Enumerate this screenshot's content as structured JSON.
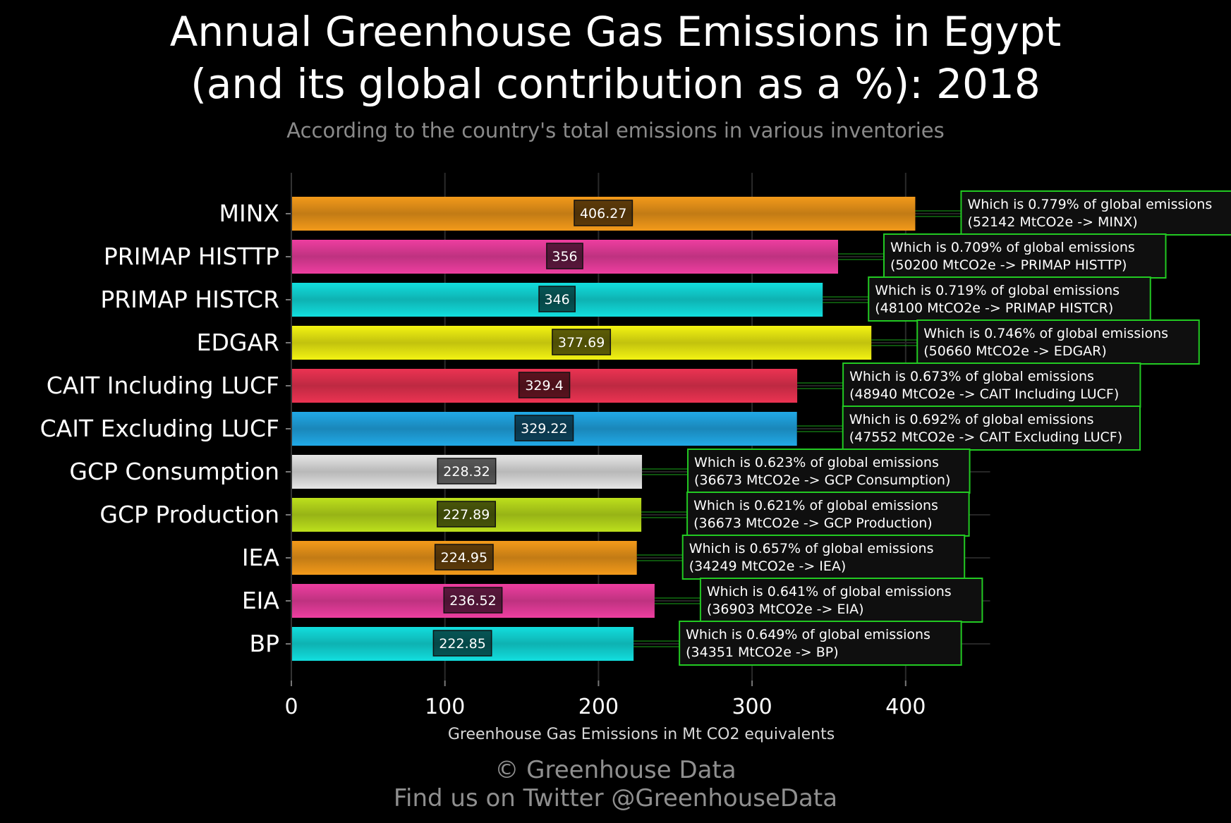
{
  "chart_data": {
    "type": "bar",
    "orientation": "horizontal",
    "title_lines": [
      "Annual Greenhouse Gas Emissions in Egypt",
      "(and its global contribution as a %): 2018"
    ],
    "subtitle": "According to the country's total emissions in various inventories",
    "xlabel": "Greenhouse Gas Emissions in Mt CO2 equivalents",
    "ylabel": "",
    "xlim": [
      0,
      455
    ],
    "xticks": [
      0,
      100,
      200,
      300,
      400
    ],
    "grid": true,
    "categories": [
      "MINX",
      "PRIMAP HISTTP",
      "PRIMAP HISTCR",
      "EDGAR",
      "CAIT Including LUCF",
      "CAIT Excluding LUCF",
      "GCP Consumption",
      "GCP Production",
      "IEA",
      "EIA",
      "BP"
    ],
    "values": [
      406.27,
      356,
      346,
      377.69,
      329.4,
      329.22,
      228.32,
      227.89,
      224.95,
      236.52,
      222.85
    ],
    "value_labels": [
      "406.27",
      "356",
      "346",
      "377.69",
      "329.4",
      "329.22",
      "228.32",
      "227.89",
      "224.95",
      "236.52",
      "222.85"
    ],
    "colors": [
      "#f39a1a",
      "#ee3ea0",
      "#12dede",
      "#f3f312",
      "#ec3352",
      "#21a9e7",
      "#e6e6e6",
      "#bde01c",
      "#f39a1a",
      "#ee3ea0",
      "#12dede"
    ],
    "annotations": [
      {
        "line1": "Which is 0.779% of global emissions",
        "line2": "(52142 MtCO2e -> MINX)",
        "share_pct": 0.779
      },
      {
        "line1": "Which is 0.709% of global emissions",
        "line2": "(50200 MtCO2e -> PRIMAP HISTTP)",
        "share_pct": 0.709
      },
      {
        "line1": "Which is 0.719% of global emissions",
        "line2": "(48100 MtCO2e -> PRIMAP HISTCR)",
        "share_pct": 0.719
      },
      {
        "line1": "Which is 0.746% of global emissions",
        "line2": "(50660 MtCO2e -> EDGAR)",
        "share_pct": 0.746
      },
      {
        "line1": "Which is 0.673% of global emissions",
        "line2": "(48940 MtCO2e -> CAIT Including LUCF)",
        "share_pct": 0.673
      },
      {
        "line1": "Which is 0.692% of global emissions",
        "line2": "(47552 MtCO2e -> CAIT Excluding LUCF)",
        "share_pct": 0.692
      },
      {
        "line1": "Which is 0.623% of global emissions",
        "line2": "(36673 MtCO2e -> GCP Consumption)",
        "share_pct": 0.623
      },
      {
        "line1": "Which is 0.621% of global emissions",
        "line2": "(36673 MtCO2e -> GCP Production)",
        "share_pct": 0.621
      },
      {
        "line1": "Which is 0.657% of global emissions",
        "line2": "(34249 MtCO2e -> IEA)",
        "share_pct": 0.657
      },
      {
        "line1": "Which is 0.641% of global emissions",
        "line2": "(36903 MtCO2e -> EIA)",
        "share_pct": 0.641
      },
      {
        "line1": "Which is 0.649% of global emissions",
        "line2": "(34351 MtCO2e -> BP)",
        "share_pct": 0.649
      }
    ],
    "annotation_border_color": "#22c922"
  },
  "footer": {
    "credit": "© Greenhouse Data",
    "twitter": "Find us on Twitter @GreenhouseData"
  }
}
